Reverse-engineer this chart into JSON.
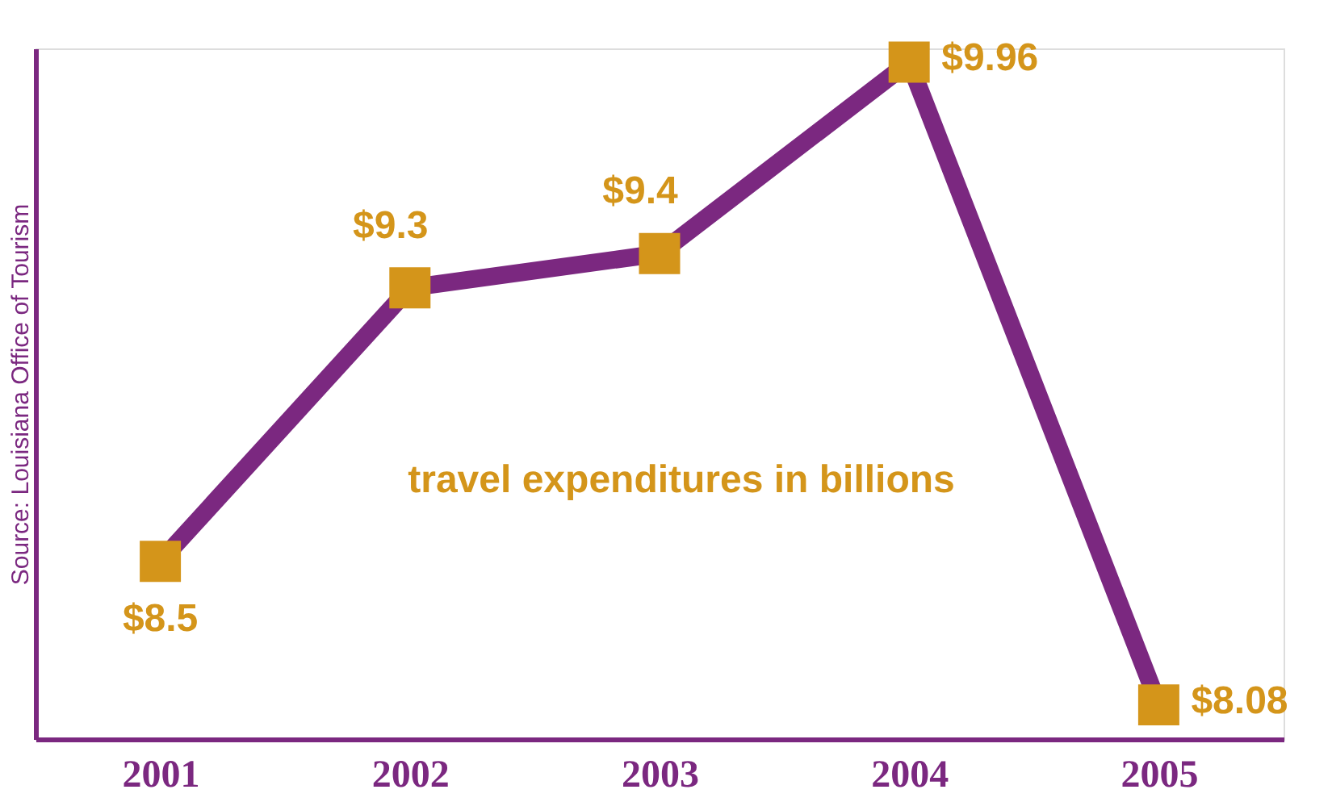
{
  "chart_data": {
    "type": "line",
    "title": "travel expenditures in billions",
    "categories": [
      "2001",
      "2002",
      "2003",
      "2004",
      "2005"
    ],
    "series": [
      {
        "color": "#7b2880",
        "values": [
          8.5,
          9.3,
          9.4,
          9.96,
          8.08
        ],
        "value_labels": [
          "$8.5",
          "$9.3",
          "$9.4",
          "$9.96",
          "$8.08"
        ]
      }
    ],
    "ylim": [
      7.98,
      10.0
    ],
    "tick_labels": "x",
    "grid": false,
    "marker": "square",
    "line_style": "solid",
    "annotations": [
      "Source: Louisiana Office of Tourism"
    ]
  }
}
